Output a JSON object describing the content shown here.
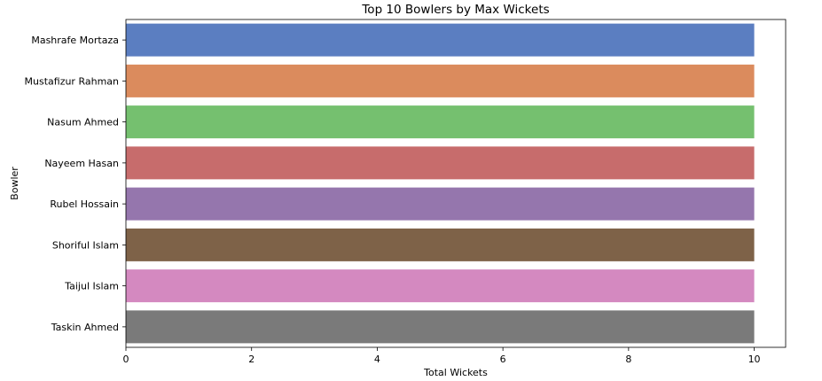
{
  "chart_data": {
    "type": "bar",
    "orientation": "horizontal",
    "title": "Top 10 Bowlers by Max Wickets",
    "xlabel": "Total Wickets",
    "ylabel": "Bowler",
    "xlim": [
      0,
      10.5
    ],
    "xticks": [
      0,
      2,
      4,
      6,
      8,
      10
    ],
    "categories": [
      "Mashrafe Mortaza",
      "Mustafizur Rahman",
      "Nasum Ahmed",
      "Nayeem Hasan",
      "Rubel Hossain",
      "Shoriful Islam",
      "Taijul Islam",
      "Taskin Ahmed"
    ],
    "values": [
      10,
      10,
      10,
      10,
      10,
      10,
      10,
      10
    ],
    "colors": [
      "#5b7ec1",
      "#db8b5d",
      "#75c06f",
      "#c76c6c",
      "#9576ad",
      "#7e6248",
      "#d489c0",
      "#7a7a7a"
    ],
    "grid": false,
    "legend": "none"
  }
}
